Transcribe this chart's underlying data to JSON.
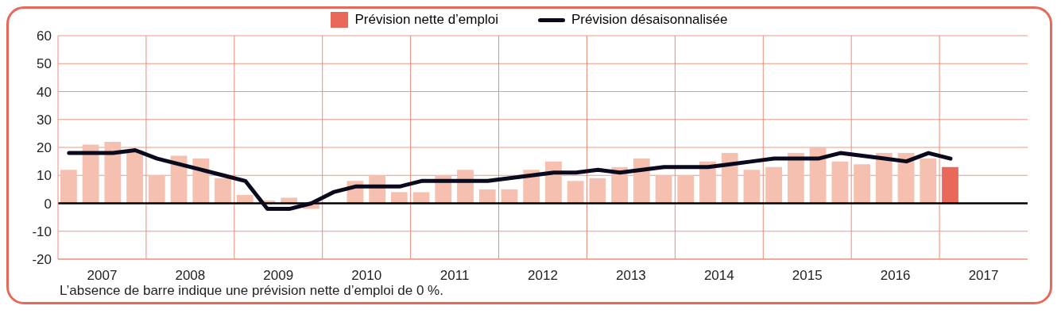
{
  "chart_data": {
    "type": "bar",
    "x": [
      2007.125,
      2007.375,
      2007.625,
      2007.875,
      2008.125,
      2008.375,
      2008.625,
      2008.875,
      2009.125,
      2009.375,
      2009.625,
      2009.875,
      2010.125,
      2010.375,
      2010.625,
      2010.875,
      2011.125,
      2011.375,
      2011.625,
      2011.875,
      2012.125,
      2012.375,
      2012.625,
      2012.875,
      2013.125,
      2013.375,
      2013.625,
      2013.875,
      2014.125,
      2014.375,
      2014.625,
      2014.875,
      2015.125,
      2015.375,
      2015.625,
      2015.875,
      2016.125,
      2016.375,
      2016.625,
      2016.875,
      2017.125
    ],
    "series": [
      {
        "name": "Prévision nette d’emploi",
        "colors": [
          "#f6c0b0",
          "#f6c0b0",
          "#f6c0b0",
          "#f6c0b0",
          "#f6c0b0",
          "#f6c0b0",
          "#f6c0b0",
          "#f6c0b0",
          "#f6c0b0",
          "#f6c0b0",
          "#f6c0b0",
          "#f6c0b0",
          "#f6c0b0",
          "#f6c0b0",
          "#f6c0b0",
          "#f6c0b0",
          "#f6c0b0",
          "#f6c0b0",
          "#f6c0b0",
          "#f6c0b0",
          "#f6c0b0",
          "#f6c0b0",
          "#f6c0b0",
          "#f6c0b0",
          "#f6c0b0",
          "#f6c0b0",
          "#f6c0b0",
          "#f6c0b0",
          "#f6c0b0",
          "#f6c0b0",
          "#f6c0b0",
          "#f6c0b0",
          "#f6c0b0",
          "#f6c0b0",
          "#f6c0b0",
          "#f6c0b0",
          "#f6c0b0",
          "#f6c0b0",
          "#f6c0b0",
          "#f6c0b0",
          "#e8695a"
        ],
        "color": "#e8695a",
        "values": [
          12,
          21,
          22,
          19,
          10,
          17,
          16,
          9,
          3,
          1,
          2,
          -2,
          0,
          8,
          10,
          4,
          4,
          10,
          12,
          5,
          5,
          12,
          15,
          8,
          9,
          13,
          16,
          10,
          10,
          15,
          18,
          12,
          13,
          18,
          20,
          15,
          14,
          18,
          18,
          16,
          13
        ]
      },
      {
        "name": "Prévision désaisonnalisée",
        "type": "line",
        "color": "#0a0a1e",
        "values": [
          18,
          18,
          18,
          19,
          16,
          14,
          12,
          10,
          8,
          -2,
          -2,
          0,
          4,
          6,
          6,
          6,
          8,
          8,
          8,
          8,
          9,
          10,
          11,
          11,
          12,
          11,
          12,
          13,
          13,
          13,
          14,
          15,
          16,
          16,
          16,
          18,
          17,
          16,
          15,
          18,
          16
        ]
      }
    ],
    "xlim": [
      2007,
      2018
    ],
    "xticks": [
      {
        "value": 2008,
        "label": null
      },
      {
        "value": 2009,
        "label": null
      },
      {
        "value": 2010,
        "label": null
      },
      {
        "value": 2011,
        "label": null
      },
      {
        "value": 2012,
        "label": null
      },
      {
        "value": 2013,
        "label": null
      },
      {
        "value": 2014,
        "label": null
      },
      {
        "value": 2015,
        "label": null
      },
      {
        "value": 2016,
        "label": null
      },
      {
        "value": 2017,
        "label": null
      },
      {
        "value": 2007.5,
        "label": "2007"
      },
      {
        "value": 2008.5,
        "label": "2008"
      },
      {
        "value": 2009.5,
        "label": "2009"
      },
      {
        "value": 2010.5,
        "label": "2010"
      },
      {
        "value": 2011.5,
        "label": "2011"
      },
      {
        "value": 2012.5,
        "label": "2012"
      },
      {
        "value": 2013.5,
        "label": "2013"
      },
      {
        "value": 2014.5,
        "label": "2014"
      },
      {
        "value": 2015.5,
        "label": "2015"
      },
      {
        "value": 2016.5,
        "label": "2016"
      },
      {
        "value": 2017.5,
        "label": "2017"
      }
    ],
    "ylim": [
      -20,
      60
    ],
    "yticks": [
      -20,
      -10,
      0,
      10,
      20,
      30,
      40,
      50,
      60
    ],
    "grid": true,
    "legend": "top",
    "ref_lines": [
      {
        "axis": "y",
        "value": 0,
        "color": "#000000"
      }
    ],
    "annotations": [
      "L’absence de barre indique une prévision nette d’emploi de 0 %."
    ]
  }
}
